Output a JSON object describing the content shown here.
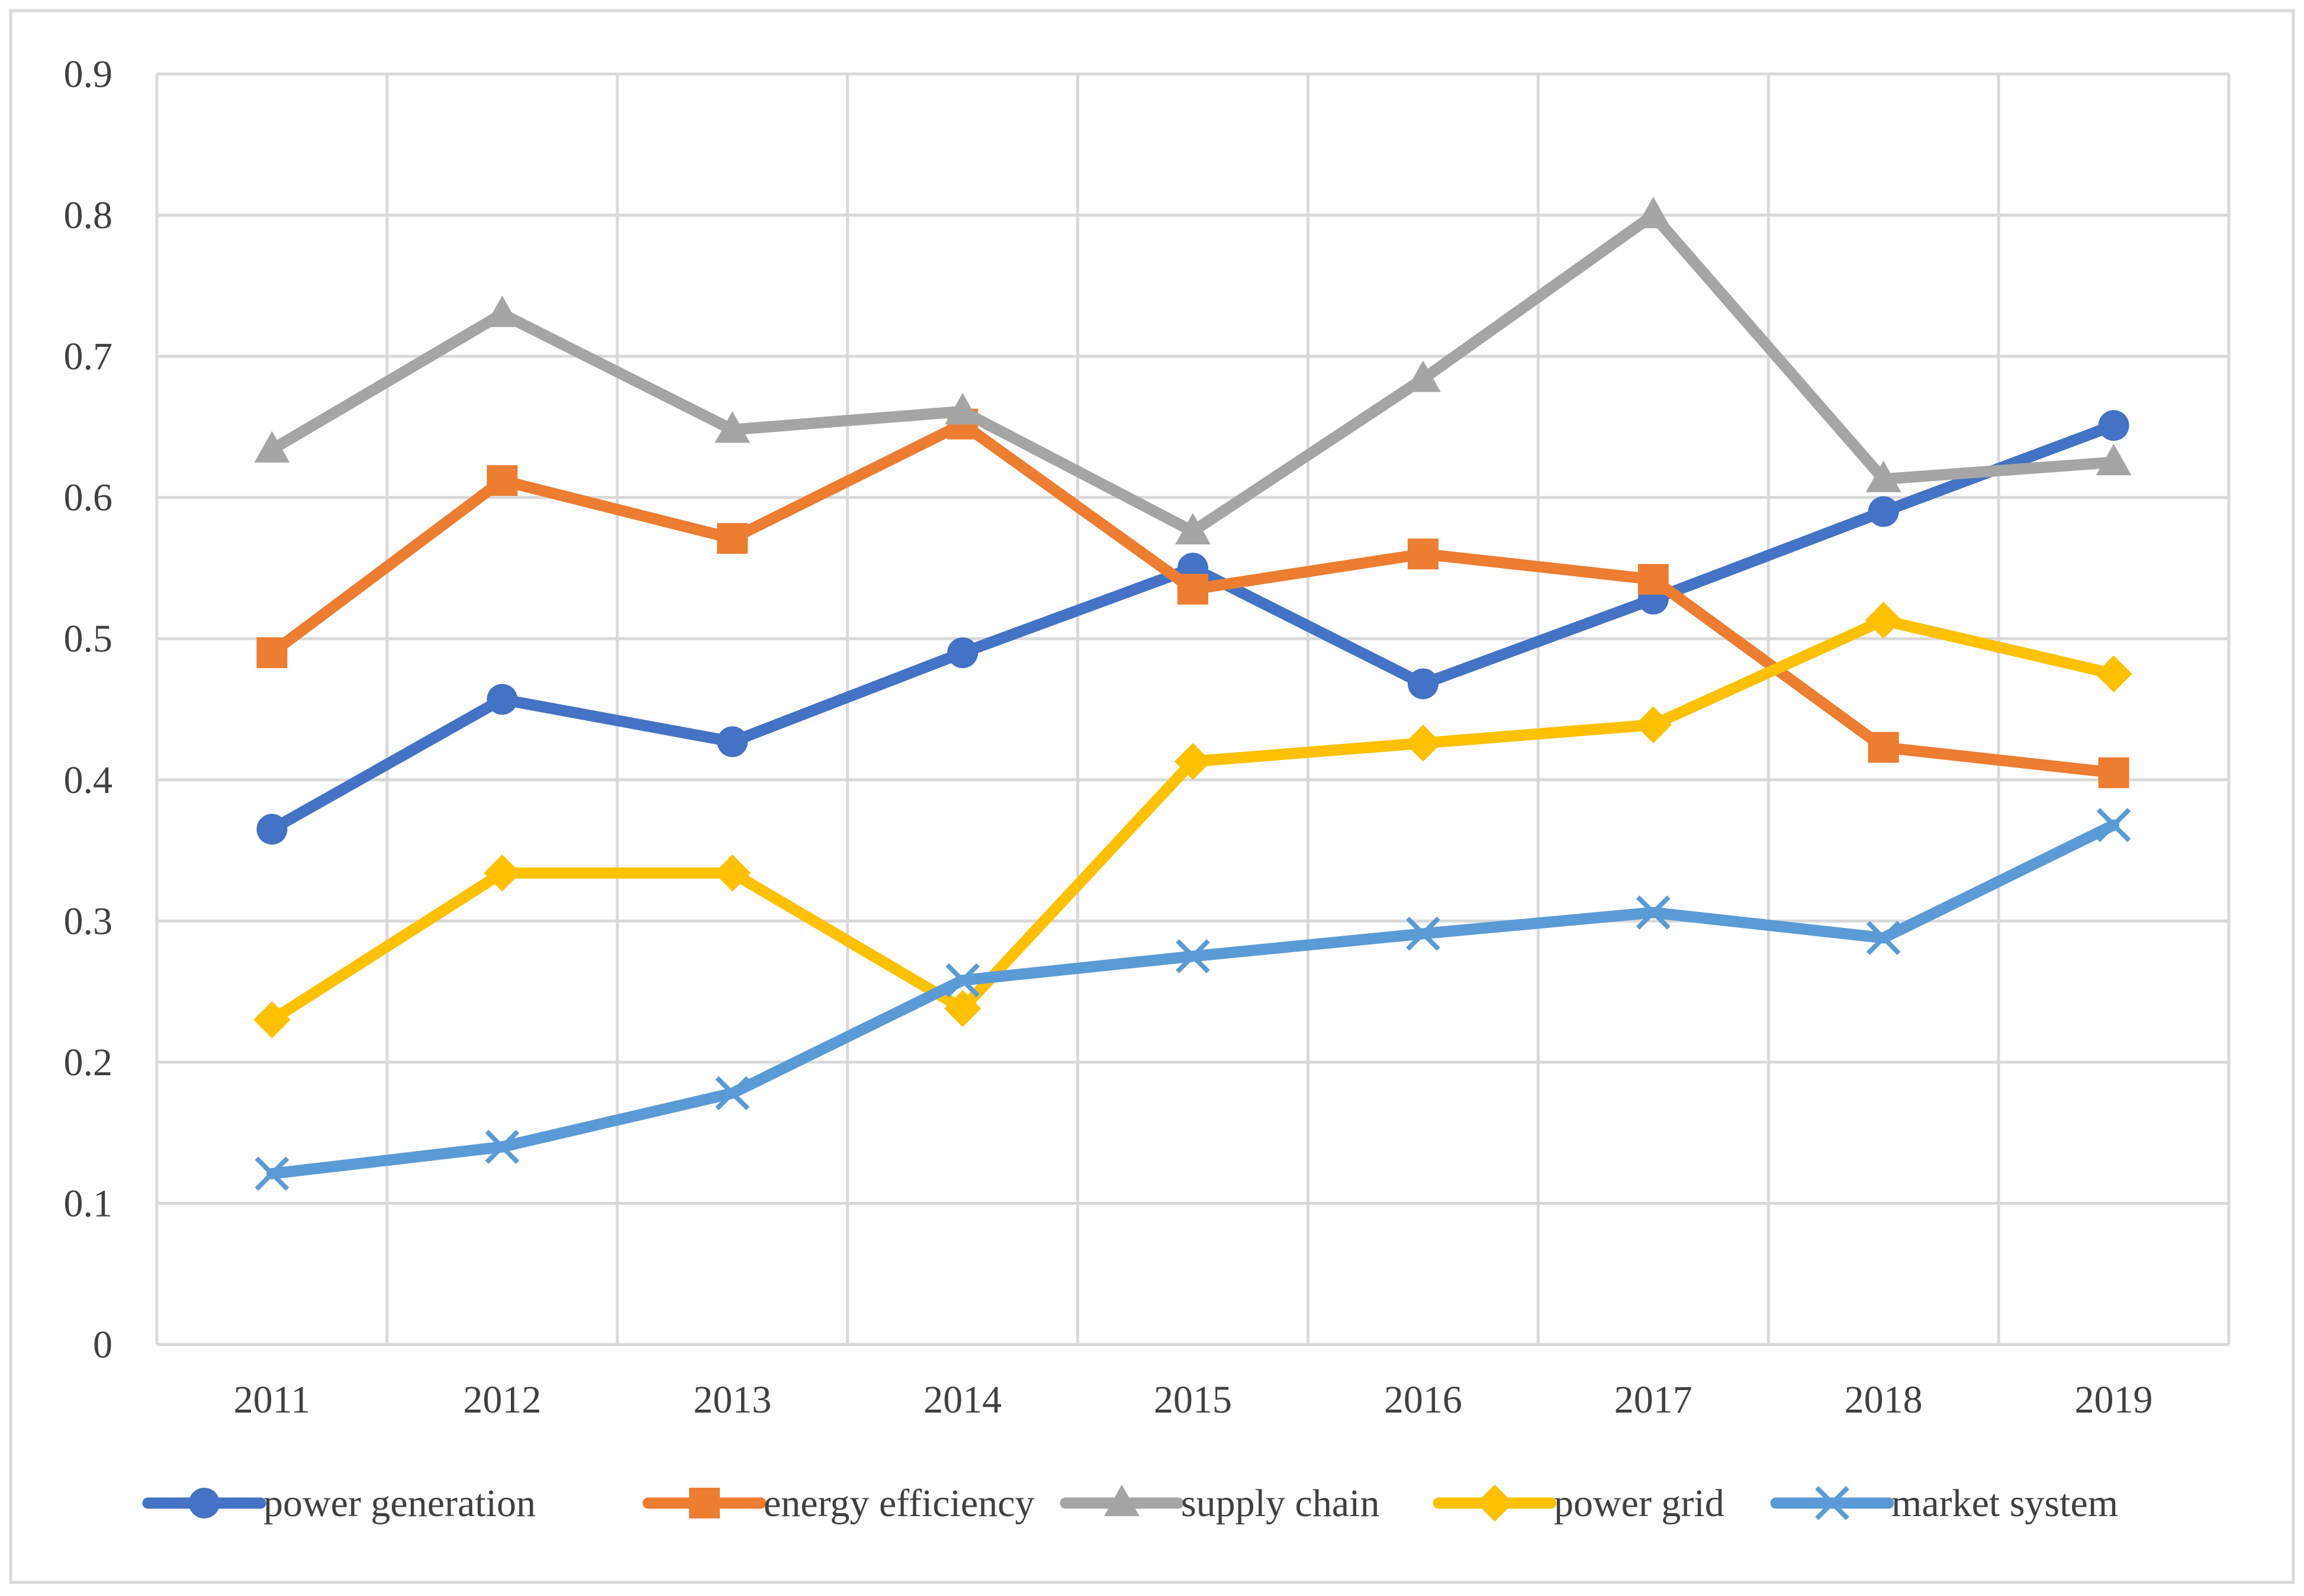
{
  "chart_data": {
    "type": "line",
    "title": "",
    "xlabel": "",
    "ylabel": "",
    "categories": [
      "2011",
      "2012",
      "2013",
      "2014",
      "2015",
      "2016",
      "2017",
      "2018",
      "2019"
    ],
    "ylim": [
      0,
      0.9
    ],
    "yticks": [
      "0",
      "0.1",
      "0.2",
      "0.3",
      "0.4",
      "0.5",
      "0.6",
      "0.7",
      "0.8",
      "0.9"
    ],
    "grid": true,
    "legend_position": "bottom",
    "series": [
      {
        "name": "power generation",
        "color": "#4472C4",
        "marker": "circle",
        "values": [
          0.365,
          0.457,
          0.427,
          0.49,
          0.55,
          0.468,
          0.528,
          0.59,
          0.651
        ]
      },
      {
        "name": "energy efficiency",
        "color": "#ED7D31",
        "marker": "square",
        "values": [
          0.49,
          0.612,
          0.571,
          0.652,
          0.535,
          0.56,
          0.542,
          0.423,
          0.405
        ]
      },
      {
        "name": "supply chain",
        "color": "#A5A5A5",
        "marker": "triangle",
        "values": [
          0.634,
          0.73,
          0.648,
          0.661,
          0.576,
          0.684,
          0.8,
          0.613,
          0.625
        ]
      },
      {
        "name": "power grid",
        "color": "#FFC000",
        "marker": "diamond",
        "values": [
          0.23,
          0.334,
          0.334,
          0.238,
          0.413,
          0.426,
          0.439,
          0.513,
          0.475
        ]
      },
      {
        "name": "market system",
        "color": "#5B9BD5",
        "marker": "x",
        "values": [
          0.121,
          0.14,
          0.178,
          0.258,
          0.275,
          0.291,
          0.306,
          0.288,
          0.368
        ]
      }
    ]
  }
}
